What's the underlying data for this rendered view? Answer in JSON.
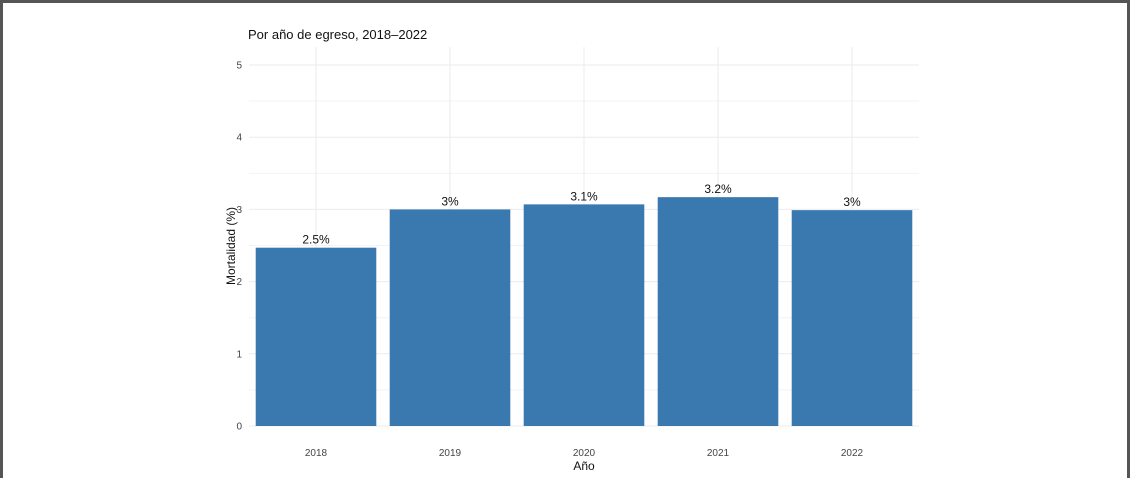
{
  "chart_data": {
    "type": "bar",
    "title": "Por año de egreso, 2018–2022",
    "xlabel": "Año",
    "ylabel": "Mortalidad (%)",
    "categories": [
      "2018",
      "2019",
      "2020",
      "2021",
      "2022"
    ],
    "values": [
      2.47,
      3.0,
      3.07,
      3.17,
      2.99
    ],
    "labels": [
      "2.5%",
      "3%",
      "3.1%",
      "3.2%",
      "3%"
    ],
    "yticks": [
      "0",
      "1",
      "2",
      "3",
      "4",
      "5"
    ],
    "ylim": [
      0,
      5.25
    ],
    "grid": true,
    "bar_color": "#3a78b0",
    "grid_color": "#ebebeb"
  }
}
